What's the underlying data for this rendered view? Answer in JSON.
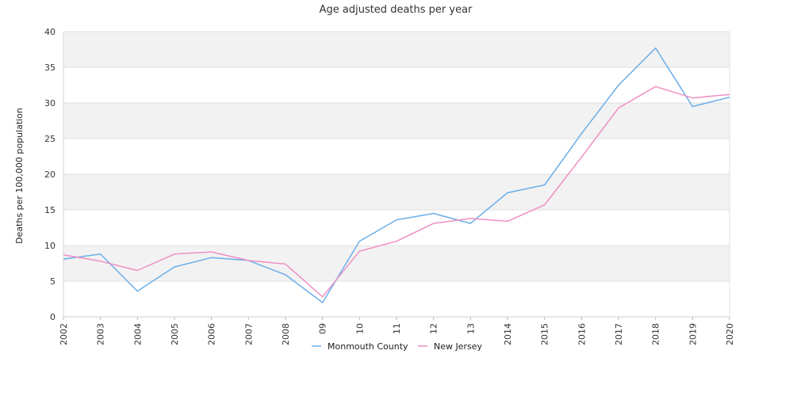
{
  "chart_data": {
    "type": "line",
    "title": "Age adjusted deaths per year",
    "xlabel": "",
    "ylabel": "Deaths per 100,000 population",
    "categories": [
      "2002",
      "2003",
      "2004",
      "2005",
      "2006",
      "2007",
      "2008",
      "09",
      "10",
      "11",
      "12",
      "13",
      "2014",
      "2015",
      "2016",
      "2017",
      "2018",
      "2019",
      "2020"
    ],
    "ylim": [
      0,
      40
    ],
    "yticks": [
      0,
      5,
      10,
      15,
      20,
      25,
      30,
      35,
      40
    ],
    "grid": true,
    "legend_position": "bottom",
    "series": [
      {
        "name": "Monmouth County",
        "color": "#6aaee8",
        "values": [
          8.1,
          8.8,
          3.6,
          7.0,
          8.3,
          7.9,
          5.9,
          2.0,
          10.6,
          13.6,
          14.5,
          13.1,
          17.4,
          18.5,
          25.7,
          32.5,
          37.7,
          29.5,
          30.8
        ]
      },
      {
        "name": "New Jersey",
        "color": "#ef8fc3",
        "values": [
          8.7,
          7.8,
          6.5,
          8.8,
          9.1,
          7.9,
          7.4,
          2.8,
          9.2,
          10.6,
          13.1,
          13.8,
          13.4,
          15.7,
          22.4,
          29.3,
          32.3,
          30.7,
          31.2
        ]
      }
    ]
  }
}
